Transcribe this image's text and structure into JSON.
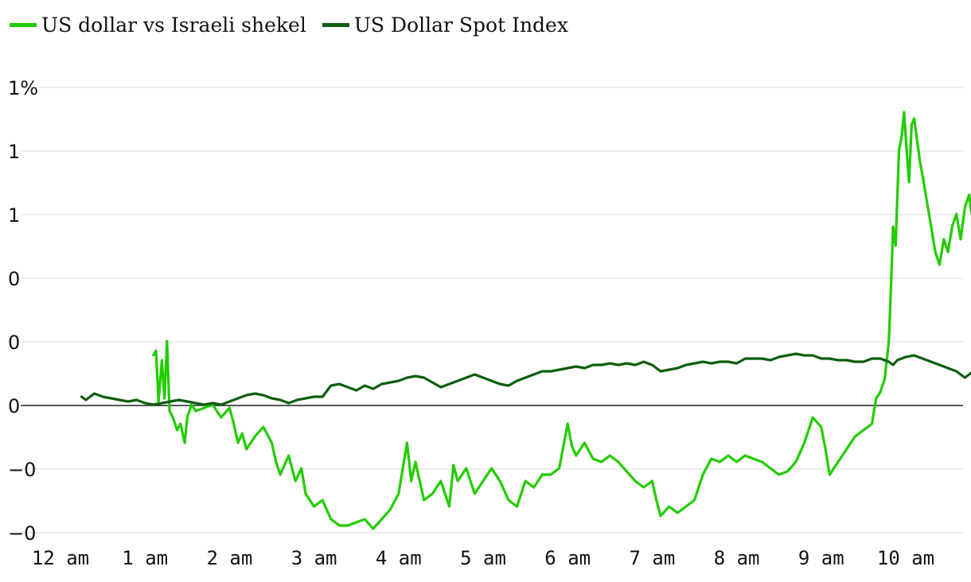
{
  "chart_data": {
    "type": "line",
    "legend_position": "top-left",
    "grid": true,
    "x_ticks": [
      "12 am",
      "1 am",
      "2 am",
      "3 am",
      "4 am",
      "5 am",
      "6 am",
      "7 am",
      "8 am",
      "9 am",
      "10 am"
    ],
    "x_range_hours": [
      0,
      10.85
    ],
    "y_ticks": [
      "1%",
      "1",
      "1",
      "0",
      "0",
      "0",
      "−0",
      "−0"
    ],
    "ylim": [
      -0.2,
      0.5
    ],
    "series": [
      {
        "name": "US dollar vs Israeli shekel",
        "color": "#22cc00",
        "points": [
          [
            1.1,
            0.078
          ],
          [
            1.13,
            0.085
          ],
          [
            1.16,
            0.005
          ],
          [
            1.2,
            0.07
          ],
          [
            1.23,
            0.01
          ],
          [
            1.26,
            0.1
          ],
          [
            1.29,
            -0.01
          ],
          [
            1.33,
            -0.02
          ],
          [
            1.38,
            -0.04
          ],
          [
            1.42,
            -0.03
          ],
          [
            1.47,
            -0.06
          ],
          [
            1.5,
            -0.02
          ],
          [
            1.55,
            0.0
          ],
          [
            1.6,
            -0.01
          ],
          [
            1.7,
            -0.005
          ],
          [
            1.8,
            0.0
          ],
          [
            1.9,
            -0.02
          ],
          [
            2.0,
            -0.005
          ],
          [
            2.05,
            -0.03
          ],
          [
            2.1,
            -0.06
          ],
          [
            2.15,
            -0.045
          ],
          [
            2.2,
            -0.07
          ],
          [
            2.3,
            -0.05
          ],
          [
            2.4,
            -0.035
          ],
          [
            2.5,
            -0.06
          ],
          [
            2.55,
            -0.09
          ],
          [
            2.6,
            -0.11
          ],
          [
            2.7,
            -0.08
          ],
          [
            2.78,
            -0.12
          ],
          [
            2.85,
            -0.1
          ],
          [
            2.9,
            -0.14
          ],
          [
            3.0,
            -0.16
          ],
          [
            3.1,
            -0.15
          ],
          [
            3.2,
            -0.18
          ],
          [
            3.3,
            -0.19
          ],
          [
            3.4,
            -0.19
          ],
          [
            3.5,
            -0.185
          ],
          [
            3.6,
            -0.18
          ],
          [
            3.7,
            -0.195
          ],
          [
            3.8,
            -0.18
          ],
          [
            3.9,
            -0.165
          ],
          [
            4.0,
            -0.14
          ],
          [
            4.05,
            -0.1
          ],
          [
            4.1,
            -0.06
          ],
          [
            4.15,
            -0.12
          ],
          [
            4.2,
            -0.09
          ],
          [
            4.3,
            -0.15
          ],
          [
            4.4,
            -0.14
          ],
          [
            4.5,
            -0.12
          ],
          [
            4.6,
            -0.16
          ],
          [
            4.65,
            -0.095
          ],
          [
            4.7,
            -0.12
          ],
          [
            4.8,
            -0.1
          ],
          [
            4.9,
            -0.14
          ],
          [
            5.0,
            -0.12
          ],
          [
            5.1,
            -0.1
          ],
          [
            5.2,
            -0.12
          ],
          [
            5.3,
            -0.15
          ],
          [
            5.4,
            -0.16
          ],
          [
            5.5,
            -0.12
          ],
          [
            5.6,
            -0.13
          ],
          [
            5.7,
            -0.11
          ],
          [
            5.8,
            -0.11
          ],
          [
            5.9,
            -0.1
          ],
          [
            6.0,
            -0.03
          ],
          [
            6.05,
            -0.065
          ],
          [
            6.1,
            -0.08
          ],
          [
            6.2,
            -0.06
          ],
          [
            6.3,
            -0.085
          ],
          [
            6.4,
            -0.09
          ],
          [
            6.5,
            -0.08
          ],
          [
            6.6,
            -0.09
          ],
          [
            6.7,
            -0.105
          ],
          [
            6.8,
            -0.12
          ],
          [
            6.9,
            -0.13
          ],
          [
            7.0,
            -0.12
          ],
          [
            7.05,
            -0.15
          ],
          [
            7.1,
            -0.175
          ],
          [
            7.2,
            -0.16
          ],
          [
            7.3,
            -0.17
          ],
          [
            7.4,
            -0.16
          ],
          [
            7.5,
            -0.15
          ],
          [
            7.6,
            -0.11
          ],
          [
            7.7,
            -0.085
          ],
          [
            7.8,
            -0.09
          ],
          [
            7.9,
            -0.08
          ],
          [
            8.0,
            -0.09
          ],
          [
            8.1,
            -0.08
          ],
          [
            8.2,
            -0.085
          ],
          [
            8.3,
            -0.09
          ],
          [
            8.4,
            -0.1
          ],
          [
            8.5,
            -0.11
          ],
          [
            8.6,
            -0.105
          ],
          [
            8.7,
            -0.09
          ],
          [
            8.8,
            -0.06
          ],
          [
            8.85,
            -0.04
          ],
          [
            8.9,
            -0.02
          ],
          [
            9.0,
            -0.035
          ],
          [
            9.05,
            -0.07
          ],
          [
            9.1,
            -0.11
          ],
          [
            9.2,
            -0.09
          ],
          [
            9.3,
            -0.07
          ],
          [
            9.4,
            -0.05
          ],
          [
            9.5,
            -0.04
          ],
          [
            9.6,
            -0.03
          ],
          [
            9.65,
            0.01
          ],
          [
            9.7,
            0.02
          ],
          [
            9.75,
            0.04
          ],
          [
            9.8,
            0.1
          ],
          [
            9.83,
            0.2
          ],
          [
            9.85,
            0.28
          ],
          [
            9.88,
            0.25
          ],
          [
            9.92,
            0.4
          ],
          [
            9.95,
            0.42
          ],
          [
            9.98,
            0.46
          ],
          [
            10.01,
            0.4
          ],
          [
            10.04,
            0.35
          ],
          [
            10.07,
            0.44
          ],
          [
            10.1,
            0.45
          ],
          [
            10.13,
            0.42
          ],
          [
            10.17,
            0.38
          ],
          [
            10.2,
            0.36
          ],
          [
            10.25,
            0.32
          ],
          [
            10.3,
            0.28
          ],
          [
            10.35,
            0.24
          ],
          [
            10.4,
            0.22
          ],
          [
            10.45,
            0.26
          ],
          [
            10.5,
            0.24
          ],
          [
            10.55,
            0.28
          ],
          [
            10.6,
            0.3
          ],
          [
            10.65,
            0.26
          ],
          [
            10.7,
            0.31
          ],
          [
            10.75,
            0.33
          ],
          [
            10.78,
            0.3
          ]
        ]
      },
      {
        "name": "US Dollar Spot Index",
        "color": "#0e5e0e",
        "points": [
          [
            0.25,
            0.0025
          ],
          [
            0.3,
            0.0015
          ],
          [
            0.4,
            0.0035
          ],
          [
            0.5,
            0.0025
          ],
          [
            0.6,
            0.002
          ],
          [
            0.7,
            0.0015
          ],
          [
            0.8,
            0.001
          ],
          [
            0.9,
            0.0015
          ],
          [
            1.0,
            0.0005
          ],
          [
            1.1,
            0.0
          ],
          [
            1.2,
            0.0005
          ],
          [
            1.3,
            0.001
          ],
          [
            1.4,
            0.0015
          ],
          [
            1.5,
            0.001
          ],
          [
            1.6,
            0.0005
          ],
          [
            1.7,
            0.0
          ],
          [
            1.8,
            0.0005
          ],
          [
            1.9,
            0.0
          ],
          [
            2.0,
            0.001
          ],
          [
            2.1,
            0.002
          ],
          [
            2.2,
            0.003
          ],
          [
            2.3,
            0.0035
          ],
          [
            2.4,
            0.003
          ],
          [
            2.5,
            0.002
          ],
          [
            2.6,
            0.0015
          ],
          [
            2.7,
            0.0005
          ],
          [
            2.8,
            0.0015
          ],
          [
            2.9,
            0.002
          ],
          [
            3.0,
            0.0025
          ],
          [
            3.1,
            0.0025
          ],
          [
            3.2,
            0.006
          ],
          [
            3.3,
            0.0065
          ],
          [
            3.4,
            0.0055
          ],
          [
            3.5,
            0.0045
          ],
          [
            3.6,
            0.006
          ],
          [
            3.7,
            0.005
          ],
          [
            3.8,
            0.0065
          ],
          [
            3.9,
            0.007
          ],
          [
            4.0,
            0.0075
          ],
          [
            4.1,
            0.0085
          ],
          [
            4.2,
            0.009
          ],
          [
            4.3,
            0.0085
          ],
          [
            4.4,
            0.007
          ],
          [
            4.5,
            0.0055
          ],
          [
            4.6,
            0.0065
          ],
          [
            4.7,
            0.0075
          ],
          [
            4.8,
            0.0085
          ],
          [
            4.9,
            0.0095
          ],
          [
            5.0,
            0.0085
          ],
          [
            5.1,
            0.0075
          ],
          [
            5.2,
            0.0065
          ],
          [
            5.3,
            0.006
          ],
          [
            5.4,
            0.0075
          ],
          [
            5.5,
            0.0085
          ],
          [
            5.6,
            0.0095
          ],
          [
            5.7,
            0.0105
          ],
          [
            5.8,
            0.0105
          ],
          [
            5.9,
            0.011
          ],
          [
            6.0,
            0.0115
          ],
          [
            6.1,
            0.012
          ],
          [
            6.2,
            0.0115
          ],
          [
            6.3,
            0.0125
          ],
          [
            6.4,
            0.0125
          ],
          [
            6.5,
            0.013
          ],
          [
            6.6,
            0.0125
          ],
          [
            6.7,
            0.013
          ],
          [
            6.8,
            0.0125
          ],
          [
            6.9,
            0.0135
          ],
          [
            7.0,
            0.0125
          ],
          [
            7.1,
            0.0105
          ],
          [
            7.2,
            0.011
          ],
          [
            7.3,
            0.0115
          ],
          [
            7.4,
            0.0125
          ],
          [
            7.5,
            0.013
          ],
          [
            7.6,
            0.0135
          ],
          [
            7.7,
            0.013
          ],
          [
            7.8,
            0.0135
          ],
          [
            7.9,
            0.0135
          ],
          [
            8.0,
            0.013
          ],
          [
            8.1,
            0.0145
          ],
          [
            8.2,
            0.0145
          ],
          [
            8.3,
            0.0145
          ],
          [
            8.4,
            0.014
          ],
          [
            8.5,
            0.015
          ],
          [
            8.6,
            0.0155
          ],
          [
            8.7,
            0.016
          ],
          [
            8.8,
            0.0155
          ],
          [
            8.9,
            0.0155
          ],
          [
            9.0,
            0.0145
          ],
          [
            9.1,
            0.0145
          ],
          [
            9.2,
            0.014
          ],
          [
            9.3,
            0.014
          ],
          [
            9.4,
            0.0135
          ],
          [
            9.5,
            0.0135
          ],
          [
            9.6,
            0.0145
          ],
          [
            9.7,
            0.0145
          ],
          [
            9.8,
            0.0135
          ],
          [
            9.85,
            0.0125
          ],
          [
            9.9,
            0.014
          ],
          [
            10.0,
            0.015
          ],
          [
            10.1,
            0.0155
          ],
          [
            10.2,
            0.0145
          ],
          [
            10.3,
            0.0135
          ],
          [
            10.4,
            0.0125
          ],
          [
            10.5,
            0.0115
          ],
          [
            10.6,
            0.0105
          ],
          [
            10.7,
            0.0085
          ],
          [
            10.75,
            0.0095
          ],
          [
            10.8,
            0.0105
          ]
        ]
      }
    ]
  }
}
